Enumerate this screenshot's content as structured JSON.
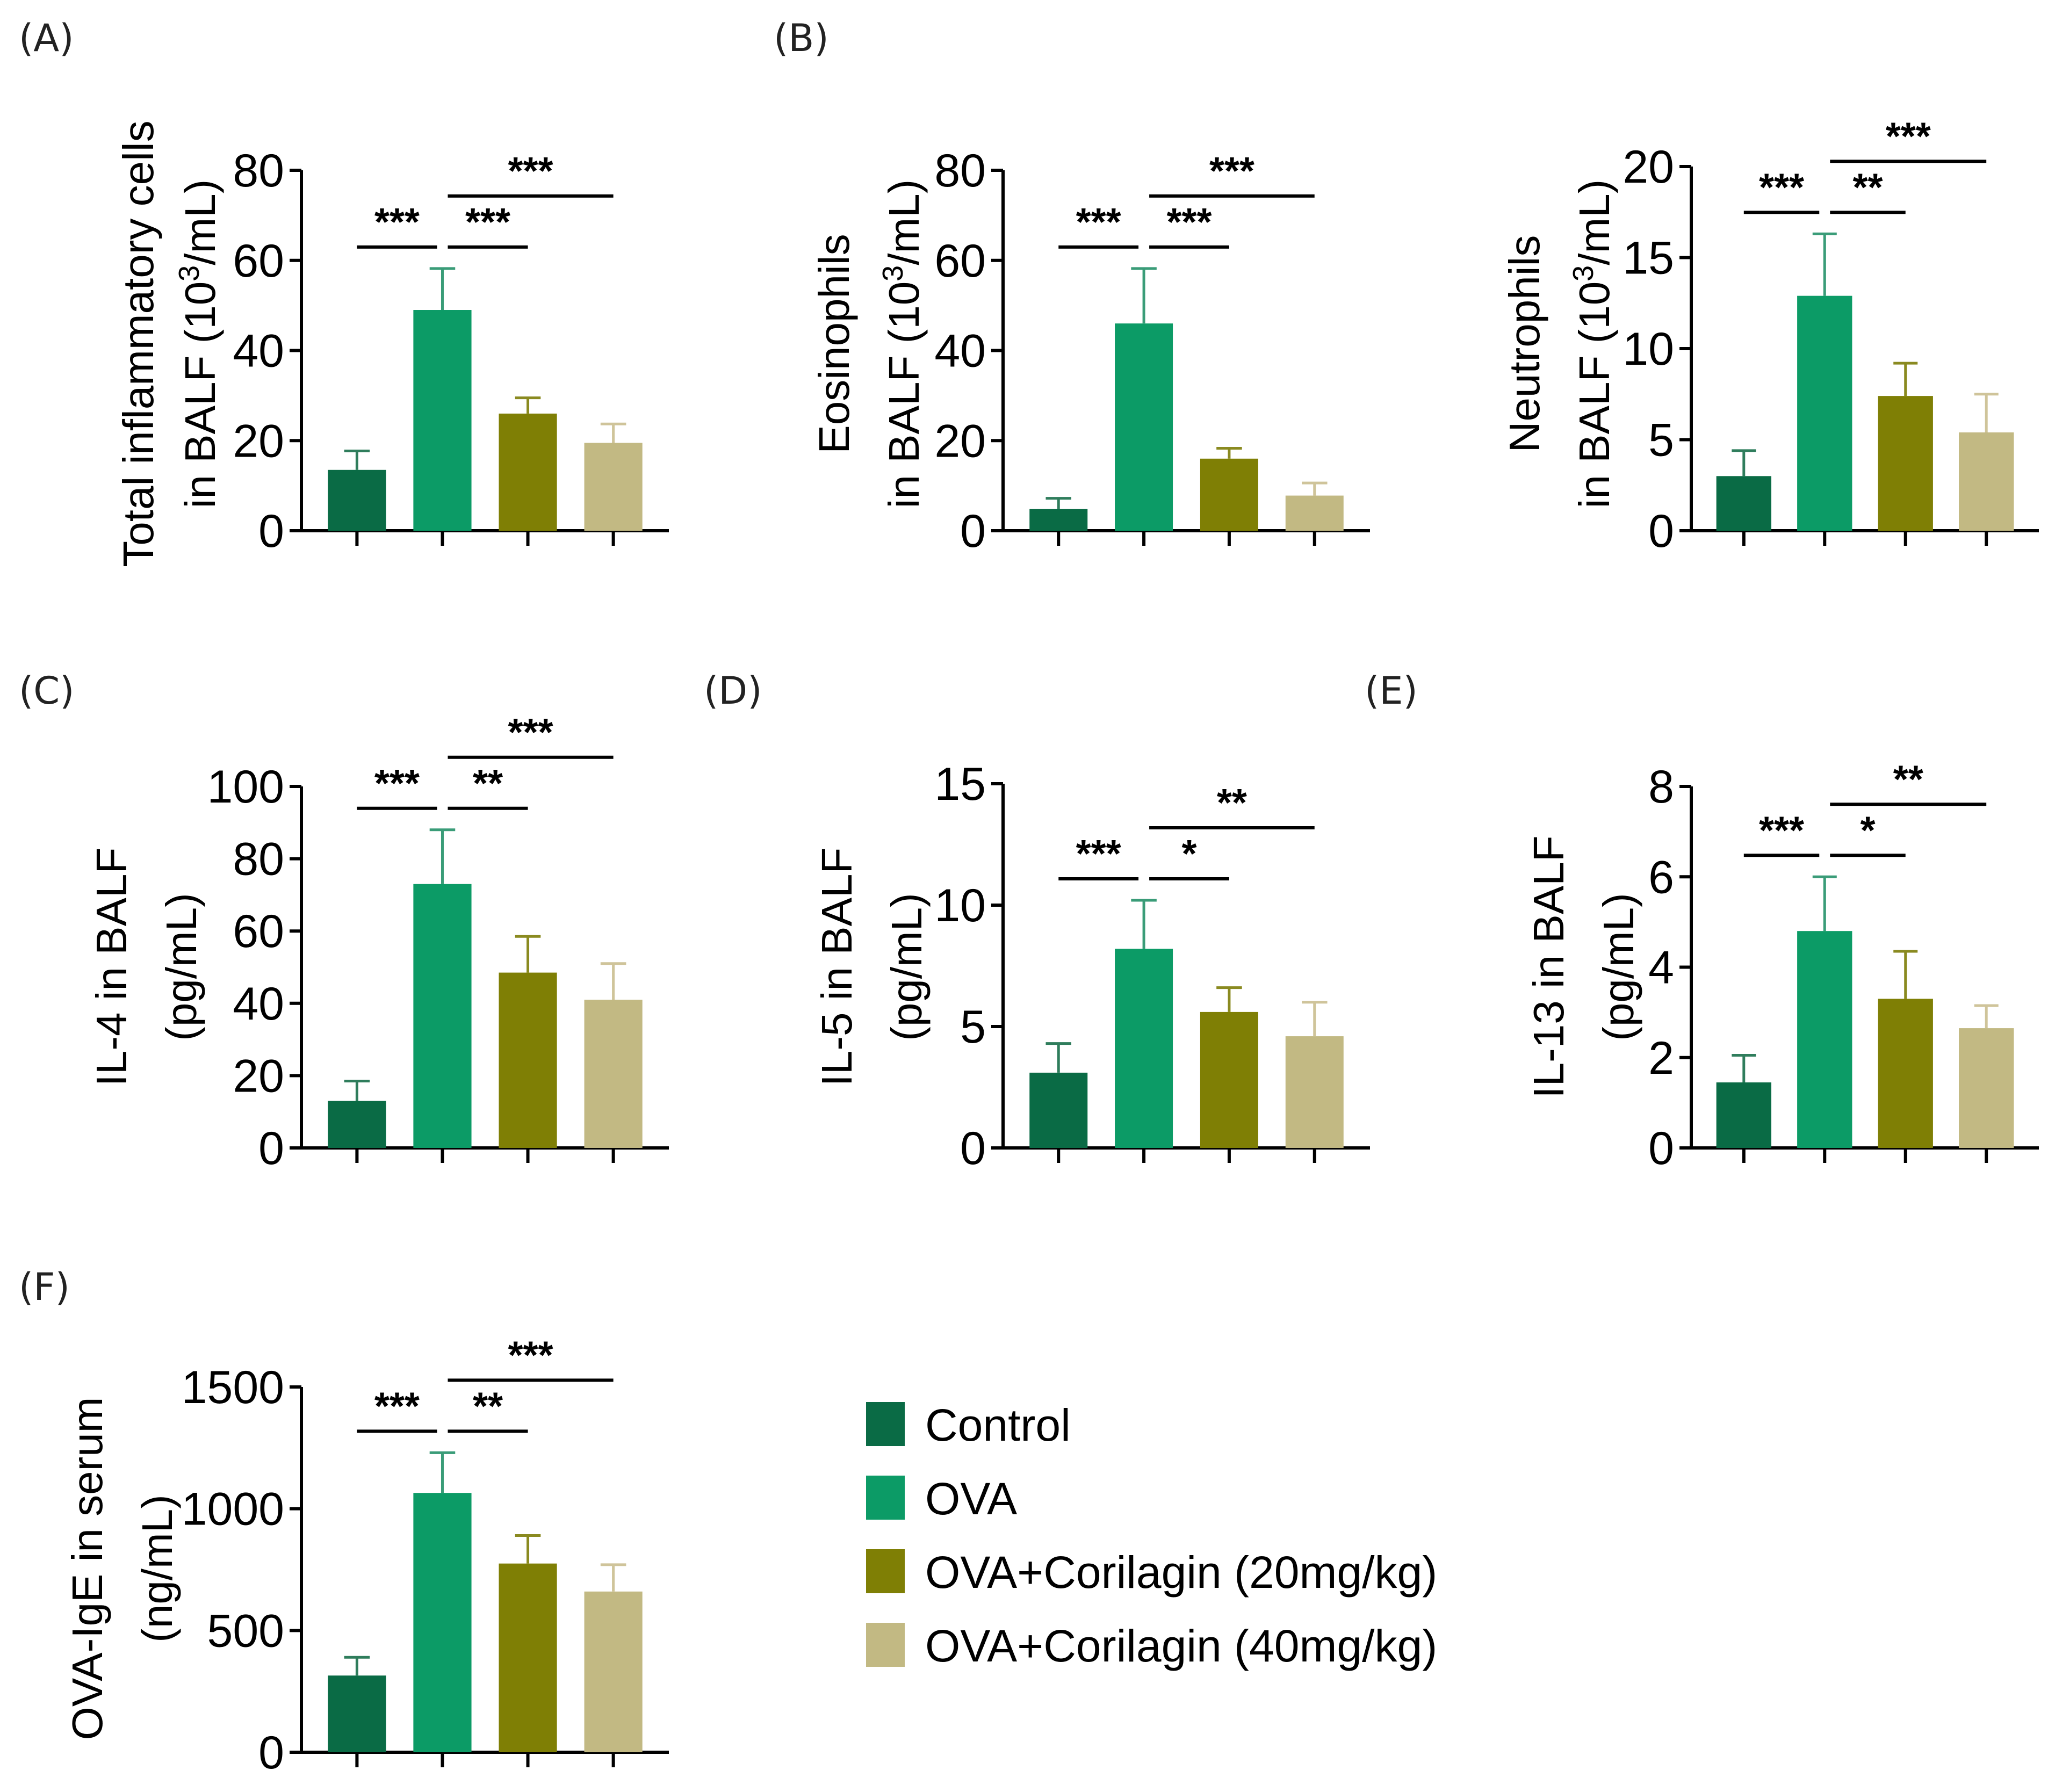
{
  "legend": {
    "items": [
      {
        "label": "Control",
        "color": "#0a6b45"
      },
      {
        "label": "OVA",
        "color": "#0c9b66"
      },
      {
        "label": "OVA+Corilagin (20mg/kg)",
        "color": "#7f7f05"
      },
      {
        "label": "OVA+Corilagin (40mg/kg)",
        "color": "#c2b983"
      }
    ]
  },
  "chart_data": [
    {
      "type": "bar",
      "panel": "(A)",
      "title": "",
      "ylabel_lines": [
        "Total inflammatory cells",
        "in BALF (10",
        "3",
        "/mL)"
      ],
      "ylabel": "Total inflammatory cells in BALF (10^3/mL)",
      "categories": [
        "Control",
        "OVA",
        "OVA+Corilagin (20mg/kg)",
        "OVA+Corilagin (40mg/kg)"
      ],
      "values": [
        13.5,
        49,
        26,
        19.5
      ],
      "errors": [
        4.2,
        9.2,
        3.5,
        4.2
      ],
      "ylim": [
        0,
        80
      ],
      "yticks": [
        0,
        20,
        40,
        60,
        80
      ],
      "significance": [
        {
          "from": 0,
          "to": 1,
          "label": "***",
          "level": 1
        },
        {
          "from": 1,
          "to": 2,
          "label": "***",
          "level": 1
        },
        {
          "from": 1,
          "to": 3,
          "label": "***",
          "level": 2
        }
      ]
    },
    {
      "type": "bar",
      "panel": "(B)",
      "title": "",
      "ylabel_lines": [
        "Eosinophils",
        "in BALF (10",
        "3",
        "/mL)"
      ],
      "ylabel": "Eosinophils in BALF (10^3/mL)",
      "categories": [
        "Control",
        "OVA",
        "OVA+Corilagin (20mg/kg)",
        "OVA+Corilagin (40mg/kg)"
      ],
      "values": [
        4.8,
        46,
        16,
        7.8
      ],
      "errors": [
        2.4,
        12.2,
        2.3,
        2.8
      ],
      "ylim": [
        0,
        80
      ],
      "yticks": [
        0,
        20,
        40,
        60,
        80
      ],
      "significance": [
        {
          "from": 0,
          "to": 1,
          "label": "***",
          "level": 1
        },
        {
          "from": 1,
          "to": 2,
          "label": "***",
          "level": 1
        },
        {
          "from": 1,
          "to": 3,
          "label": "***",
          "level": 2
        }
      ]
    },
    {
      "type": "bar",
      "panel": "",
      "title": "",
      "ylabel_lines": [
        "Neutrophils",
        "in BALF (10",
        "3",
        "/mL)"
      ],
      "ylabel": "Neutrophils in BALF (10^3/mL)",
      "categories": [
        "Control",
        "OVA",
        "OVA+Corilagin (20mg/kg)",
        "OVA+Corilagin (40mg/kg)"
      ],
      "values": [
        3.0,
        12.9,
        7.4,
        5.4
      ],
      "errors": [
        1.4,
        3.4,
        1.8,
        2.1
      ],
      "ylim": [
        0,
        20
      ],
      "yticks": [
        0,
        5,
        10,
        15,
        20
      ],
      "significance": [
        {
          "from": 0,
          "to": 1,
          "label": "***",
          "level": 1
        },
        {
          "from": 1,
          "to": 2,
          "label": "**",
          "level": 1
        },
        {
          "from": 1,
          "to": 3,
          "label": "***",
          "level": 2
        }
      ]
    },
    {
      "type": "bar",
      "panel": "(C)",
      "title": "",
      "ylabel_lines": [
        "IL-4 in BALF",
        "(pg/mL)"
      ],
      "ylabel": "IL-4 in BALF (pg/mL)",
      "categories": [
        "Control",
        "OVA",
        "OVA+Corilagin (20mg/kg)",
        "OVA+Corilagin (40mg/kg)"
      ],
      "values": [
        13,
        73,
        48.5,
        41
      ],
      "errors": [
        5.5,
        15,
        10,
        10
      ],
      "ylim": [
        0,
        100
      ],
      "yticks": [
        0,
        20,
        40,
        60,
        80,
        100
      ],
      "significance": [
        {
          "from": 0,
          "to": 1,
          "label": "***",
          "level": 1
        },
        {
          "from": 1,
          "to": 2,
          "label": "**",
          "level": 1
        },
        {
          "from": 1,
          "to": 3,
          "label": "***",
          "level": 2
        }
      ]
    },
    {
      "type": "bar",
      "panel": "(D)",
      "title": "",
      "ylabel_lines": [
        "IL-5 in BALF",
        "(pg/mL)"
      ],
      "ylabel": "IL-5 in BALF (pg/mL)",
      "categories": [
        "Control",
        "OVA",
        "OVA+Corilagin (20mg/kg)",
        "OVA+Corilagin (40mg/kg)"
      ],
      "values": [
        3.1,
        8.2,
        5.6,
        4.6
      ],
      "errors": [
        1.2,
        2.0,
        1.0,
        1.4
      ],
      "ylim": [
        0,
        15
      ],
      "yticks": [
        0,
        5,
        10,
        15
      ],
      "significance": [
        {
          "from": 0,
          "to": 1,
          "label": "***",
          "level": 1
        },
        {
          "from": 1,
          "to": 2,
          "label": "*",
          "level": 1
        },
        {
          "from": 1,
          "to": 3,
          "label": "**",
          "level": 2
        }
      ]
    },
    {
      "type": "bar",
      "panel": "(E)",
      "title": "",
      "ylabel_lines": [
        "IL-13 in BALF",
        "(pg/mL)"
      ],
      "ylabel": "IL-13 in BALF (pg/mL)",
      "categories": [
        "Control",
        "OVA",
        "OVA+Corilagin (20mg/kg)",
        "OVA+Corilagin (40mg/kg)"
      ],
      "values": [
        1.45,
        4.8,
        3.3,
        2.65
      ],
      "errors": [
        0.6,
        1.2,
        1.05,
        0.5
      ],
      "ylim": [
        0,
        8
      ],
      "yticks": [
        0,
        2,
        4,
        6,
        8
      ],
      "significance": [
        {
          "from": 0,
          "to": 1,
          "label": "***",
          "level": 1
        },
        {
          "from": 1,
          "to": 2,
          "label": "*",
          "level": 1
        },
        {
          "from": 1,
          "to": 3,
          "label": "**",
          "level": 2
        }
      ]
    },
    {
      "type": "bar",
      "panel": "(F)",
      "title": "",
      "ylabel_lines": [
        "OVA-IgE in serum",
        "(ng/mL)"
      ],
      "ylabel": "OVA-IgE in serum (ng/mL)",
      "categories": [
        "Control",
        "OVA",
        "OVA+Corilagin (20mg/kg)",
        "OVA+Corilagin (40mg/kg)"
      ],
      "values": [
        315,
        1065,
        775,
        660
      ],
      "errors": [
        75,
        165,
        115,
        110
      ],
      "ylim": [
        0,
        1500
      ],
      "yticks": [
        0,
        500,
        1000,
        1500
      ],
      "significance": [
        {
          "from": 0,
          "to": 1,
          "label": "***",
          "level": 1
        },
        {
          "from": 1,
          "to": 2,
          "label": "**",
          "level": 1
        },
        {
          "from": 1,
          "to": 3,
          "label": "***",
          "level": 2
        }
      ]
    }
  ]
}
